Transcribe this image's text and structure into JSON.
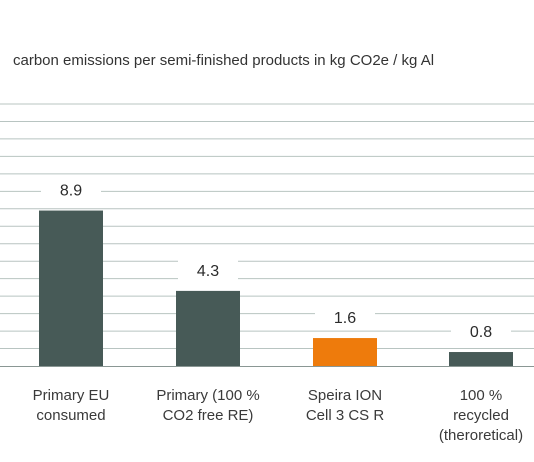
{
  "chart_data": {
    "type": "bar",
    "title": "carbon emissions per semi-finished products in kg CO2e / kg Al",
    "categories": [
      [
        "Primary EU",
        "consumed"
      ],
      [
        "Primary (100 %",
        "CO2 free RE)"
      ],
      [
        "Speira ION",
        "Cell 3 CS R"
      ],
      [
        "100 %",
        "recycled",
        "(theroretical)"
      ]
    ],
    "values": [
      8.9,
      4.3,
      1.6,
      0.8
    ],
    "value_labels": [
      "8.9",
      "4.3",
      "1.6",
      "0.8"
    ],
    "colors": [
      "#475a57",
      "#475a57",
      "#ee7b0c",
      "#475a57"
    ],
    "ylim": [
      0,
      15
    ],
    "grid": true,
    "xlabel": "",
    "ylabel": ""
  }
}
